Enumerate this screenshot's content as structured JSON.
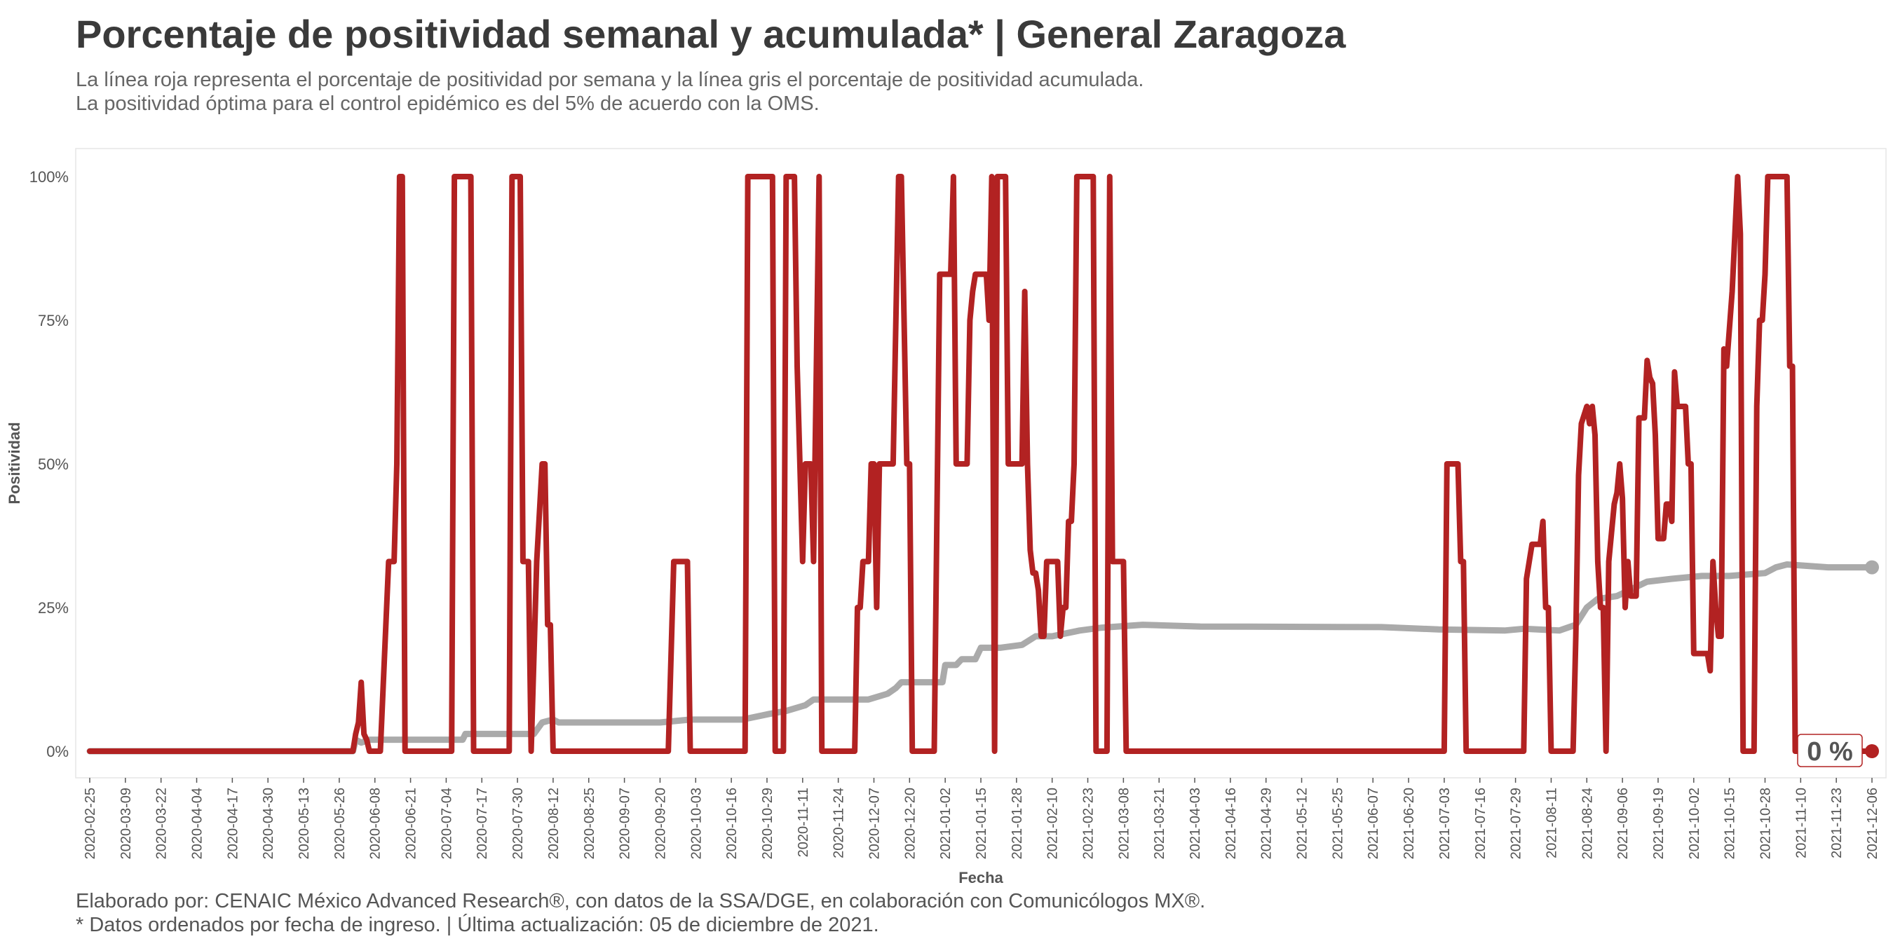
{
  "title": "Porcentaje de positividad semanal y acumulada* | General Zaragoza",
  "subtitle_lines": [
    "La línea roja representa el porcentaje de positividad por semana y la línea gris el porcentaje de positividad acumulada.",
    "La positividad óptima para el control epidémico es del 5% de acuerdo con la OMS."
  ],
  "caption_lines": [
    "Elaborado por: CENAIC México Advanced Research®, con datos de la SSA/DGE, en colaboración con Comunicólogos MX®.",
    "* Datos ordenados por fecha de ingreso. | Última actualización: 05 de diciembre de 2021."
  ],
  "chart_data": {
    "type": "line",
    "xlabel": "Fecha",
    "ylabel": "Positividad",
    "x_range": [
      "2020-02-25",
      "2021-12-06"
    ],
    "ylim": [
      0,
      100
    ],
    "y_ticks": [
      0,
      25,
      50,
      75,
      100
    ],
    "y_tick_labels": [
      "0%",
      "25%",
      "50%",
      "75%",
      "100%"
    ],
    "x_tick_labels": [
      "2020-02-25",
      "2020-03-09",
      "2020-03-22",
      "2020-04-04",
      "2020-04-17",
      "2020-04-30",
      "2020-05-13",
      "2020-05-26",
      "2020-06-08",
      "2020-06-21",
      "2020-07-04",
      "2020-07-17",
      "2020-07-30",
      "2020-08-12",
      "2020-08-25",
      "2020-09-07",
      "2020-09-20",
      "2020-10-03",
      "2020-10-16",
      "2020-10-29",
      "2020-11-11",
      "2020-11-24",
      "2020-12-07",
      "2020-12-20",
      "2021-01-02",
      "2021-01-15",
      "2021-01-28",
      "2021-02-10",
      "2021-02-23",
      "2021-03-08",
      "2021-03-21",
      "2021-04-03",
      "2021-04-16",
      "2021-04-29",
      "2021-05-12",
      "2021-05-25",
      "2021-06-07",
      "2021-06-20",
      "2021-07-03",
      "2021-07-16",
      "2021-07-29",
      "2021-08-11",
      "2021-08-24",
      "2021-09-06",
      "2021-09-19",
      "2021-10-02",
      "2021-10-15",
      "2021-10-28",
      "2021-11-10",
      "2021-11-23",
      "2021-12-06"
    ],
    "end_label": "0 %",
    "grid": false,
    "series": [
      {
        "color": "#b22222",
        "points": [
          [
            "2020-02-25",
            0
          ],
          [
            "2020-05-31",
            0
          ],
          [
            "2020-06-01",
            3
          ],
          [
            "2020-06-02",
            5
          ],
          [
            "2020-06-03",
            12
          ],
          [
            "2020-06-04",
            3
          ],
          [
            "2020-06-05",
            2
          ],
          [
            "2020-06-06",
            0
          ],
          [
            "2020-06-10",
            0
          ],
          [
            "2020-06-13",
            33
          ],
          [
            "2020-06-15",
            33
          ],
          [
            "2020-06-16",
            50
          ],
          [
            "2020-06-17",
            100
          ],
          [
            "2020-06-18",
            100
          ],
          [
            "2020-06-19",
            0
          ],
          [
            "2020-07-06",
            0
          ],
          [
            "2020-07-07",
            100
          ],
          [
            "2020-07-13",
            100
          ],
          [
            "2020-07-14",
            0
          ],
          [
            "2020-07-27",
            0
          ],
          [
            "2020-07-28",
            100
          ],
          [
            "2020-07-31",
            100
          ],
          [
            "2020-08-01",
            33
          ],
          [
            "2020-08-03",
            33
          ],
          [
            "2020-08-04",
            0
          ],
          [
            "2020-08-06",
            33
          ],
          [
            "2020-08-08",
            50
          ],
          [
            "2020-08-09",
            50
          ],
          [
            "2020-08-10",
            22
          ],
          [
            "2020-08-11",
            22
          ],
          [
            "2020-08-12",
            0
          ],
          [
            "2020-09-23",
            0
          ],
          [
            "2020-09-25",
            33
          ],
          [
            "2020-09-30",
            33
          ],
          [
            "2020-10-01",
            0
          ],
          [
            "2020-10-21",
            0
          ],
          [
            "2020-10-22",
            100
          ],
          [
            "2020-10-31",
            100
          ],
          [
            "2020-11-01",
            0
          ],
          [
            "2020-11-04",
            0
          ],
          [
            "2020-11-05",
            100
          ],
          [
            "2020-11-08",
            100
          ],
          [
            "2020-11-09",
            67
          ],
          [
            "2020-11-11",
            33
          ],
          [
            "2020-11-12",
            50
          ],
          [
            "2020-11-14",
            50
          ],
          [
            "2020-11-15",
            33
          ],
          [
            "2020-11-17",
            100
          ],
          [
            "2020-11-18",
            0
          ],
          [
            "2020-11-30",
            0
          ],
          [
            "2020-12-01",
            25
          ],
          [
            "2020-12-02",
            25
          ],
          [
            "2020-12-03",
            33
          ],
          [
            "2020-12-05",
            33
          ],
          [
            "2020-12-06",
            50
          ],
          [
            "2020-12-07",
            50
          ],
          [
            "2020-12-08",
            25
          ],
          [
            "2020-12-09",
            50
          ],
          [
            "2020-12-14",
            50
          ],
          [
            "2020-12-16",
            100
          ],
          [
            "2020-12-17",
            100
          ],
          [
            "2020-12-19",
            50
          ],
          [
            "2020-12-20",
            50
          ],
          [
            "2020-12-21",
            0
          ],
          [
            "2020-12-29",
            0
          ],
          [
            "2020-12-31",
            83
          ],
          [
            "2021-01-04",
            83
          ],
          [
            "2021-01-05",
            100
          ],
          [
            "2021-01-06",
            50
          ],
          [
            "2021-01-10",
            50
          ],
          [
            "2021-01-11",
            75
          ],
          [
            "2021-01-12",
            80
          ],
          [
            "2021-01-13",
            83
          ],
          [
            "2021-01-17",
            83
          ],
          [
            "2021-01-18",
            75
          ],
          [
            "2021-01-19",
            100
          ],
          [
            "2021-01-20",
            0
          ],
          [
            "2021-01-21",
            100
          ],
          [
            "2021-01-24",
            100
          ],
          [
            "2021-01-25",
            50
          ],
          [
            "2021-01-30",
            50
          ],
          [
            "2021-01-31",
            80
          ],
          [
            "2021-02-01",
            50
          ],
          [
            "2021-02-02",
            35
          ],
          [
            "2021-02-03",
            31
          ],
          [
            "2021-02-04",
            31
          ],
          [
            "2021-02-05",
            28
          ],
          [
            "2021-02-06",
            20
          ],
          [
            "2021-02-07",
            20
          ],
          [
            "2021-02-08",
            33
          ],
          [
            "2021-02-12",
            33
          ],
          [
            "2021-02-13",
            20
          ],
          [
            "2021-02-14",
            25
          ],
          [
            "2021-02-15",
            25
          ],
          [
            "2021-02-16",
            40
          ],
          [
            "2021-02-17",
            40
          ],
          [
            "2021-02-18",
            50
          ],
          [
            "2021-02-19",
            100
          ],
          [
            "2021-02-25",
            100
          ],
          [
            "2021-02-26",
            0
          ],
          [
            "2021-03-02",
            0
          ],
          [
            "2021-03-03",
            100
          ],
          [
            "2021-03-04",
            33
          ],
          [
            "2021-03-08",
            33
          ],
          [
            "2021-03-09",
            0
          ],
          [
            "2021-07-03",
            0
          ],
          [
            "2021-07-04",
            50
          ],
          [
            "2021-07-08",
            50
          ],
          [
            "2021-07-09",
            33
          ],
          [
            "2021-07-10",
            33
          ],
          [
            "2021-07-11",
            0
          ],
          [
            "2021-08-01",
            0
          ],
          [
            "2021-08-02",
            30
          ],
          [
            "2021-08-04",
            36
          ],
          [
            "2021-08-07",
            36
          ],
          [
            "2021-08-08",
            40
          ],
          [
            "2021-08-09",
            25
          ],
          [
            "2021-08-10",
            25
          ],
          [
            "2021-08-11",
            0
          ],
          [
            "2021-08-19",
            0
          ],
          [
            "2021-08-20",
            20
          ],
          [
            "2021-08-21",
            48
          ],
          [
            "2021-08-22",
            57
          ],
          [
            "2021-08-24",
            60
          ],
          [
            "2021-08-25",
            57
          ],
          [
            "2021-08-26",
            60
          ],
          [
            "2021-08-27",
            55
          ],
          [
            "2021-08-28",
            33
          ],
          [
            "2021-08-29",
            25
          ],
          [
            "2021-08-30",
            25
          ],
          [
            "2021-08-31",
            0
          ],
          [
            "2021-09-01",
            33
          ],
          [
            "2021-09-02",
            38
          ],
          [
            "2021-09-03",
            43
          ],
          [
            "2021-09-04",
            45
          ],
          [
            "2021-09-05",
            50
          ],
          [
            "2021-09-06",
            44
          ],
          [
            "2021-09-07",
            25
          ],
          [
            "2021-09-08",
            33
          ],
          [
            "2021-09-09",
            27
          ],
          [
            "2021-09-11",
            27
          ],
          [
            "2021-09-12",
            58
          ],
          [
            "2021-09-14",
            58
          ],
          [
            "2021-09-15",
            68
          ],
          [
            "2021-09-16",
            65
          ],
          [
            "2021-09-17",
            64
          ],
          [
            "2021-09-18",
            55
          ],
          [
            "2021-09-19",
            37
          ],
          [
            "2021-09-21",
            37
          ],
          [
            "2021-09-22",
            43
          ],
          [
            "2021-09-23",
            43
          ],
          [
            "2021-09-24",
            40
          ],
          [
            "2021-09-25",
            66
          ],
          [
            "2021-09-26",
            60
          ],
          [
            "2021-09-29",
            60
          ],
          [
            "2021-09-30",
            50
          ],
          [
            "2021-10-01",
            50
          ],
          [
            "2021-10-02",
            17
          ],
          [
            "2021-10-07",
            17
          ],
          [
            "2021-10-08",
            14
          ],
          [
            "2021-10-09",
            33
          ],
          [
            "2021-10-10",
            25
          ],
          [
            "2021-10-11",
            20
          ],
          [
            "2021-10-12",
            20
          ],
          [
            "2021-10-13",
            70
          ],
          [
            "2021-10-14",
            67
          ],
          [
            "2021-10-16",
            80
          ],
          [
            "2021-10-18",
            100
          ],
          [
            "2021-10-19",
            90
          ],
          [
            "2021-10-20",
            0
          ],
          [
            "2021-10-24",
            0
          ],
          [
            "2021-10-25",
            60
          ],
          [
            "2021-10-26",
            75
          ],
          [
            "2021-10-27",
            75
          ],
          [
            "2021-10-28",
            83
          ],
          [
            "2021-10-29",
            100
          ],
          [
            "2021-11-05",
            100
          ],
          [
            "2021-11-06",
            67
          ],
          [
            "2021-11-07",
            67
          ],
          [
            "2021-11-08",
            0
          ],
          [
            "2021-12-06",
            0
          ]
        ]
      },
      {
        "color": "#aaaaaa",
        "points": [
          [
            "2020-02-25",
            0
          ],
          [
            "2020-05-31",
            0
          ],
          [
            "2020-06-01",
            2
          ],
          [
            "2020-06-03",
            1.5
          ],
          [
            "2020-06-06",
            2
          ],
          [
            "2020-06-20",
            2
          ],
          [
            "2020-07-10",
            2
          ],
          [
            "2020-07-11",
            3
          ],
          [
            "2020-08-05",
            3
          ],
          [
            "2020-08-08",
            5
          ],
          [
            "2020-08-12",
            5.5
          ],
          [
            "2020-08-14",
            5
          ],
          [
            "2020-09-01",
            5
          ],
          [
            "2020-09-20",
            5
          ],
          [
            "2020-10-01",
            5.5
          ],
          [
            "2020-10-20",
            5.5
          ],
          [
            "2020-10-30",
            6.5
          ],
          [
            "2020-11-05",
            7
          ],
          [
            "2020-11-12",
            8
          ],
          [
            "2020-11-15",
            9
          ],
          [
            "2020-11-22",
            9
          ],
          [
            "2020-12-05",
            9
          ],
          [
            "2020-12-12",
            10
          ],
          [
            "2020-12-15",
            11
          ],
          [
            "2020-12-17",
            12
          ],
          [
            "2021-01-01",
            12
          ],
          [
            "2021-01-02",
            15
          ],
          [
            "2021-01-06",
            15
          ],
          [
            "2021-01-08",
            16
          ],
          [
            "2021-01-13",
            16
          ],
          [
            "2021-01-15",
            18
          ],
          [
            "2021-01-22",
            18
          ],
          [
            "2021-01-30",
            18.5
          ],
          [
            "2021-02-04",
            20
          ],
          [
            "2021-02-10",
            20
          ],
          [
            "2021-02-20",
            21
          ],
          [
            "2021-02-28",
            21.5
          ],
          [
            "2021-03-15",
            22
          ],
          [
            "2021-04-05",
            21.7
          ],
          [
            "2021-06-10",
            21.6
          ],
          [
            "2021-06-20",
            21.4
          ],
          [
            "2021-07-01",
            21.2
          ],
          [
            "2021-07-25",
            21
          ],
          [
            "2021-08-01",
            21.3
          ],
          [
            "2021-08-14",
            21
          ],
          [
            "2021-08-20",
            22
          ],
          [
            "2021-08-24",
            25
          ],
          [
            "2021-08-28",
            26.5
          ],
          [
            "2021-09-04",
            27
          ],
          [
            "2021-09-15",
            29.5
          ],
          [
            "2021-09-24",
            30
          ],
          [
            "2021-10-05",
            30.5
          ],
          [
            "2021-10-15",
            30.5
          ],
          [
            "2021-10-28",
            31
          ],
          [
            "2021-11-01",
            32
          ],
          [
            "2021-11-05",
            32.5
          ],
          [
            "2021-11-20",
            32
          ],
          [
            "2021-12-06",
            32
          ]
        ]
      }
    ]
  }
}
